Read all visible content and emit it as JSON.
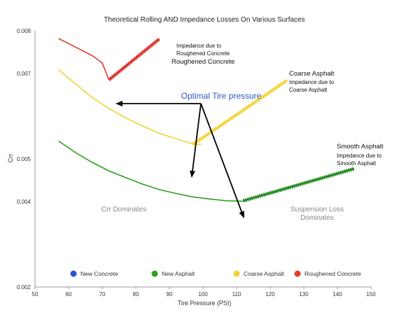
{
  "chart_data": {
    "type": "line",
    "title": "Theoretical Rolling AND Impedance Losses On Various Surfaces",
    "xlabel": "Tire Pressure (PSI)",
    "ylabel": "Crr",
    "xlim": [
      50,
      150
    ],
    "ylim": [
      0.002,
      0.008
    ],
    "x_ticks": [
      "50",
      "60",
      "70",
      "80",
      "90",
      "100",
      "110",
      "120",
      "130",
      "140",
      "150"
    ],
    "y_ticks": [
      "0.002",
      "0.004",
      "0.005",
      "0.007",
      "0.008"
    ],
    "legend_position": "bottom",
    "series": [
      {
        "name": "New Concrete",
        "color": "#2e4fd4",
        "points": []
      },
      {
        "name": "New Asphalt",
        "color": "#2ea01e",
        "points": [
          [
            57,
            0.00542
          ],
          [
            62,
            0.00515
          ],
          [
            67,
            0.00492
          ],
          [
            72,
            0.00472
          ],
          [
            77,
            0.00456
          ],
          [
            82,
            0.00441
          ],
          [
            87,
            0.00428
          ],
          [
            92,
            0.00419
          ],
          [
            97,
            0.00411
          ],
          [
            102,
            0.00406
          ],
          [
            107,
            0.00402
          ],
          [
            112,
            0.00401
          ]
        ]
      },
      {
        "name": "Coarse Asphalt",
        "color": "#f2d335",
        "points": [
          [
            57,
            0.00709
          ],
          [
            62,
            0.00676
          ],
          [
            67,
            0.00644
          ],
          [
            72,
            0.00618
          ],
          [
            77,
            0.00596
          ],
          [
            82,
            0.00577
          ],
          [
            87,
            0.0056
          ],
          [
            92,
            0.00547
          ],
          [
            97,
            0.00535
          ],
          [
            99.5,
            0.00534
          ]
        ]
      },
      {
        "name": "Roughened Concrete",
        "color": "#e43c2c",
        "points": [
          [
            57,
            0.00782
          ],
          [
            62,
            0.00762
          ],
          [
            67,
            0.00742
          ],
          [
            70,
            0.00725
          ],
          [
            72,
            0.00685
          ]
        ]
      }
    ],
    "impedance_lines": [
      {
        "label": "Smooth Asphalt",
        "sublabel": "Impedance due to Smooth Asphalt",
        "color": "#1f8a1f",
        "points": [
          [
            112,
            0.00402
          ],
          [
            145,
            0.00477
          ]
        ]
      },
      {
        "label": "Coarse Asphalt",
        "sublabel": "Impedance due to Coarse Asphalt",
        "color": "#f2d335",
        "points": [
          [
            97,
            0.00534
          ],
          [
            125,
            0.00684
          ]
        ]
      },
      {
        "label": "Roughened Concrete",
        "sublabel": "Impedance due to Roughened Concrete",
        "color": "#d9302a",
        "points": [
          [
            72,
            0.00685
          ],
          [
            87,
            0.00781
          ]
        ]
      }
    ],
    "annotations": {
      "optimal": "Optimal Tire pressure",
      "crr_dominates": "Crr Dominates",
      "suspension_loss_line1": "Suspension Loss",
      "suspension_loss_line2": "Dominates",
      "impedance_rough_line1": "Impedance due to",
      "impedance_rough_line2": "Roughened Concrete",
      "roughened_concrete": "Roughened Concrete",
      "coarse_asphalt": "Coarse Asphalt",
      "impedance_coarse_line1": "Impedance due to",
      "impedance_coarse_line2": "Coarse Asphalt",
      "smooth_asphalt": "Smooth Asphalt",
      "impedance_smooth_line1": "Impedance due to",
      "impedance_smooth_line2": "Smooth Asphalt"
    },
    "annotation_color": "#2b57c9"
  }
}
